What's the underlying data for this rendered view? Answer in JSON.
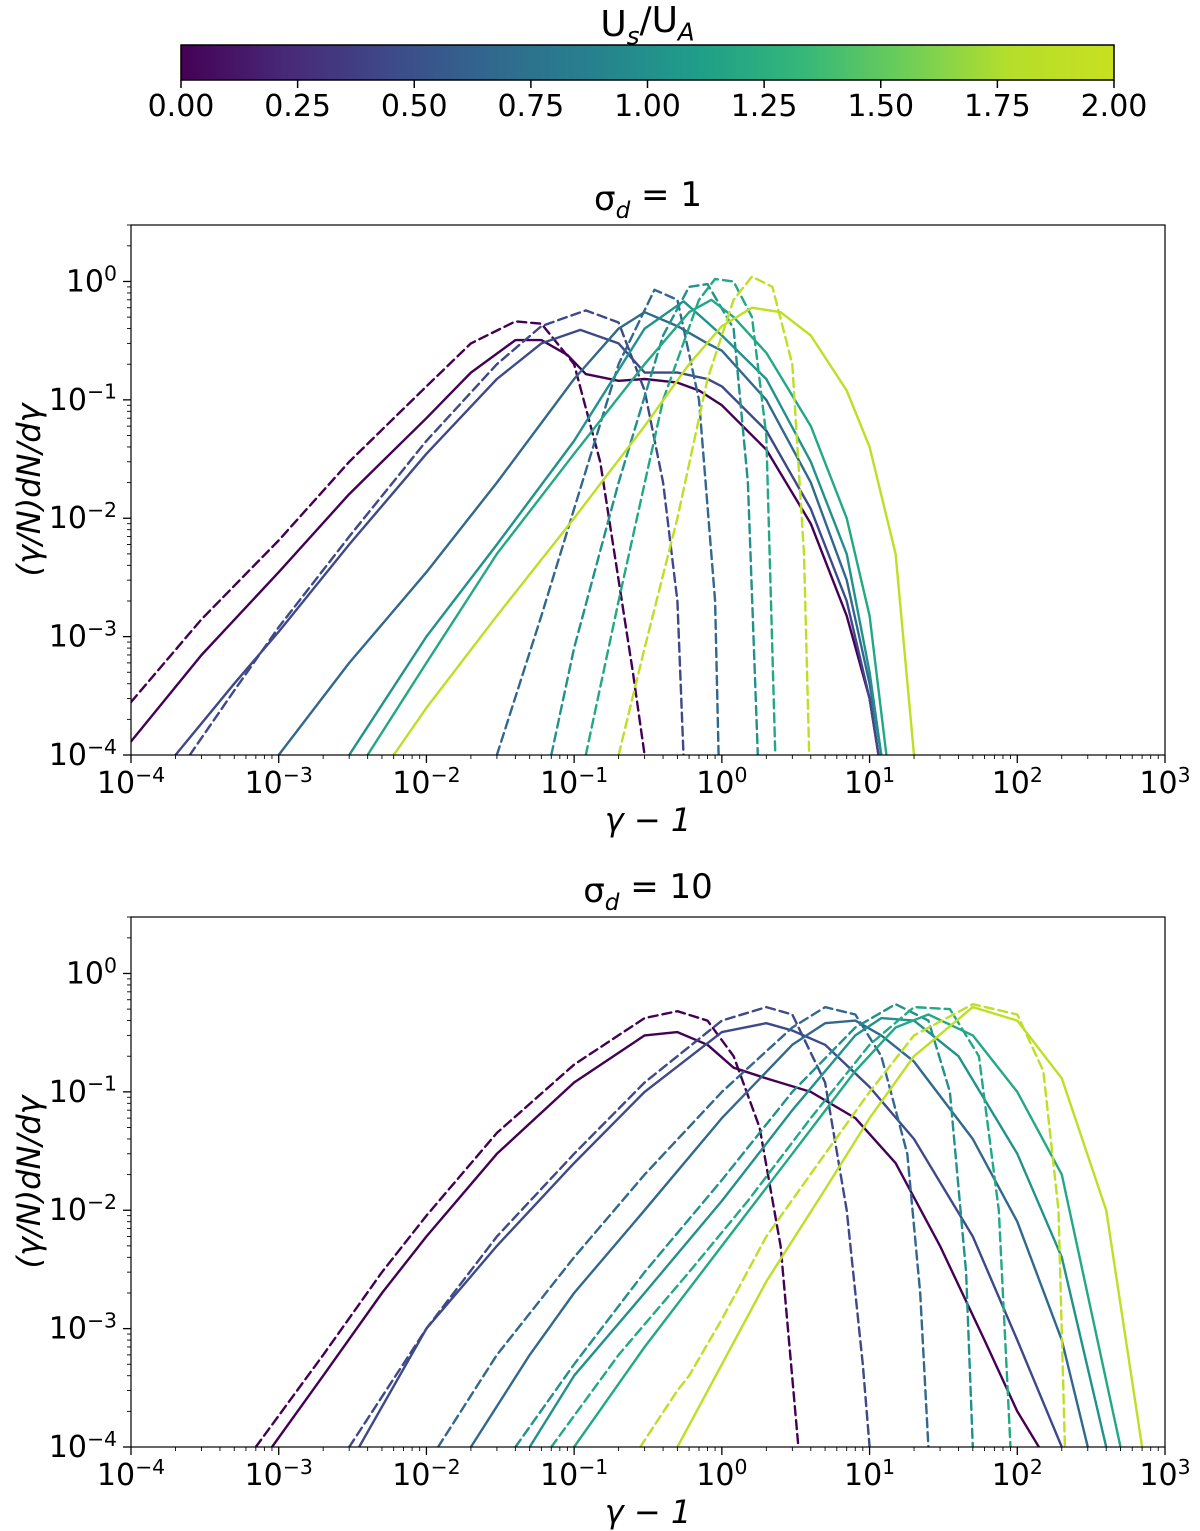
{
  "colorbar": {
    "title": "U_s/U_A",
    "min": 0,
    "max": 2,
    "ticks": [
      "0.00",
      "0.25",
      "0.50",
      "0.75",
      "1.00",
      "1.25",
      "1.50",
      "1.75",
      "2.00"
    ],
    "colormap": [
      "#440154",
      "#482878",
      "#3e4989",
      "#31688e",
      "#26828e",
      "#1f9e89",
      "#35b779",
      "#6ece58",
      "#b5de2b",
      "#c8e020"
    ]
  },
  "chart_data": [
    {
      "type": "line",
      "title": "σ_d = 1",
      "xlabel": "γ − 1",
      "ylabel": "(γ/N)dN/dγ",
      "xscale": "log",
      "yscale": "log",
      "xlim": [
        0.0001,
        1000
      ],
      "ylim": [
        0.0001,
        3
      ],
      "xticks": [
        "10^-4",
        "10^-3",
        "10^-2",
        "10^-1",
        "10^0",
        "10^1",
        "10^2",
        "10^3"
      ],
      "yticks": [
        "10^-4",
        "10^-3",
        "10^-2",
        "10^-1",
        "10^0"
      ],
      "series": [
        {
          "color": "#440154",
          "style": "solid",
          "x": [
            0.0001,
            0.0003,
            0.001,
            0.003,
            0.01,
            0.02,
            0.04,
            0.06,
            0.09,
            0.12,
            0.2,
            0.3,
            0.5,
            0.7,
            1,
            2,
            4,
            7,
            10,
            11.5
          ],
          "y": [
            0.00013,
            0.0007,
            0.0035,
            0.016,
            0.07,
            0.17,
            0.32,
            0.32,
            0.24,
            0.165,
            0.145,
            0.15,
            0.14,
            0.12,
            0.09,
            0.038,
            0.009,
            0.0015,
            0.0003,
            0.0001
          ]
        },
        {
          "color": "#440154",
          "style": "dashed",
          "x": [
            0.0001,
            0.0003,
            0.001,
            0.003,
            0.01,
            0.02,
            0.04,
            0.06,
            0.1,
            0.15,
            0.2,
            0.25,
            0.3
          ],
          "y": [
            0.00028,
            0.0014,
            0.0065,
            0.03,
            0.13,
            0.3,
            0.46,
            0.44,
            0.2,
            0.03,
            0.003,
            0.0005,
            0.0001
          ]
        },
        {
          "color": "#3e4989",
          "style": "solid",
          "x": [
            0.0002,
            0.0005,
            0.001,
            0.003,
            0.01,
            0.03,
            0.06,
            0.11,
            0.2,
            0.3,
            0.5,
            0.8,
            1,
            2,
            4,
            7,
            10,
            11.5
          ],
          "y": [
            0.0001,
            0.0004,
            0.0011,
            0.006,
            0.035,
            0.15,
            0.3,
            0.39,
            0.3,
            0.17,
            0.17,
            0.15,
            0.13,
            0.055,
            0.012,
            0.002,
            0.0003,
            0.0001
          ]
        },
        {
          "color": "#3e4989",
          "style": "dashed",
          "x": [
            0.00025,
            0.0005,
            0.001,
            0.003,
            0.01,
            0.03,
            0.06,
            0.12,
            0.2,
            0.3,
            0.4,
            0.5,
            0.55
          ],
          "y": [
            0.0001,
            0.00035,
            0.0012,
            0.007,
            0.045,
            0.2,
            0.42,
            0.57,
            0.45,
            0.12,
            0.02,
            0.002,
            0.0001
          ]
        },
        {
          "color": "#31688e",
          "style": "solid",
          "x": [
            0.001,
            0.003,
            0.01,
            0.03,
            0.1,
            0.2,
            0.3,
            0.5,
            0.8,
            1,
            2,
            4,
            7,
            10,
            12
          ],
          "y": [
            0.0001,
            0.0006,
            0.0035,
            0.02,
            0.15,
            0.4,
            0.55,
            0.42,
            0.3,
            0.26,
            0.1,
            0.02,
            0.003,
            0.0004,
            0.0001
          ]
        },
        {
          "color": "#31688e",
          "style": "dashed",
          "x": [
            0.03,
            0.06,
            0.1,
            0.2,
            0.35,
            0.5,
            0.7,
            0.9,
            0.95
          ],
          "y": [
            0.0001,
            0.0015,
            0.012,
            0.2,
            0.85,
            0.7,
            0.1,
            0.002,
            0.0001
          ]
        },
        {
          "color": "#21918c",
          "style": "solid",
          "x": [
            0.003,
            0.01,
            0.03,
            0.1,
            0.3,
            0.55,
            0.8,
            1,
            2,
            4,
            7,
            10,
            12
          ],
          "y": [
            0.0001,
            0.001,
            0.006,
            0.045,
            0.4,
            0.68,
            0.45,
            0.35,
            0.15,
            0.03,
            0.005,
            0.0005,
            0.0001
          ]
        },
        {
          "color": "#21918c",
          "style": "dashed",
          "x": [
            0.07,
            0.1,
            0.2,
            0.4,
            0.6,
            0.8,
            1.2,
            1.5,
            1.75
          ],
          "y": [
            0.0001,
            0.0008,
            0.02,
            0.35,
            0.9,
            0.95,
            0.4,
            0.02,
            0.0001
          ]
        },
        {
          "color": "#22a884",
          "style": "solid",
          "x": [
            0.004,
            0.01,
            0.03,
            0.1,
            0.3,
            0.6,
            0.85,
            1.2,
            2,
            4,
            7,
            10,
            13
          ],
          "y": [
            0.0001,
            0.0006,
            0.005,
            0.035,
            0.2,
            0.55,
            0.7,
            0.5,
            0.25,
            0.06,
            0.01,
            0.0015,
            0.0001
          ]
        },
        {
          "color": "#22a884",
          "style": "dashed",
          "x": [
            0.12,
            0.2,
            0.4,
            0.7,
            0.9,
            1.2,
            1.6,
            2,
            2.3
          ],
          "y": [
            0.0001,
            0.002,
            0.1,
            0.7,
            1.05,
            1.0,
            0.5,
            0.05,
            0.0001
          ]
        },
        {
          "color": "#bddf26",
          "style": "solid",
          "x": [
            0.006,
            0.01,
            0.03,
            0.1,
            0.3,
            0.6,
            1,
            1.6,
            2.5,
            4,
            7,
            10,
            15,
            20
          ],
          "y": [
            0.0001,
            0.00025,
            0.0015,
            0.01,
            0.06,
            0.2,
            0.42,
            0.6,
            0.55,
            0.35,
            0.12,
            0.04,
            0.005,
            0.0001
          ]
        },
        {
          "color": "#bddf26",
          "style": "dashed",
          "x": [
            0.2,
            0.3,
            0.5,
            0.8,
            1.2,
            1.6,
            2.2,
            3,
            3.6,
            3.9
          ],
          "y": [
            0.0001,
            0.0008,
            0.01,
            0.15,
            0.7,
            1.1,
            0.9,
            0.2,
            0.005,
            0.0001
          ]
        }
      ]
    },
    {
      "type": "line",
      "title": "σ_d = 10",
      "xlabel": "γ − 1",
      "ylabel": "(γ/N)dN/dγ",
      "xscale": "log",
      "yscale": "log",
      "xlim": [
        0.0001,
        1000
      ],
      "ylim": [
        0.0001,
        3
      ],
      "xticks": [
        "10^-4",
        "10^-3",
        "10^-2",
        "10^-1",
        "10^0",
        "10^1",
        "10^2",
        "10^3"
      ],
      "yticks": [
        "10^-4",
        "10^-3",
        "10^-2",
        "10^-1",
        "10^0"
      ],
      "series": [
        {
          "color": "#440154",
          "style": "solid",
          "x": [
            0.0009,
            0.002,
            0.005,
            0.01,
            0.03,
            0.1,
            0.3,
            0.5,
            0.8,
            1.2,
            2,
            4,
            8,
            15,
            30,
            60,
            100,
            140
          ],
          "y": [
            0.0001,
            0.0004,
            0.002,
            0.006,
            0.03,
            0.12,
            0.3,
            0.32,
            0.25,
            0.16,
            0.13,
            0.1,
            0.06,
            0.025,
            0.005,
            0.0008,
            0.0002,
            0.0001
          ]
        },
        {
          "color": "#440154",
          "style": "dashed",
          "x": [
            0.0007,
            0.002,
            0.005,
            0.01,
            0.03,
            0.1,
            0.3,
            0.5,
            0.8,
            1.2,
            1.8,
            2.5,
            3.3
          ],
          "y": [
            0.0001,
            0.0006,
            0.003,
            0.009,
            0.045,
            0.17,
            0.42,
            0.48,
            0.4,
            0.2,
            0.05,
            0.005,
            0.0001
          ]
        },
        {
          "color": "#3e4989",
          "style": "solid",
          "x": [
            0.0035,
            0.01,
            0.03,
            0.1,
            0.3,
            1,
            2,
            3,
            5,
            10,
            20,
            50,
            100,
            200
          ],
          "y": [
            0.0001,
            0.001,
            0.005,
            0.025,
            0.1,
            0.32,
            0.38,
            0.33,
            0.25,
            0.11,
            0.04,
            0.006,
            0.0008,
            0.0001
          ]
        },
        {
          "color": "#3e4989",
          "style": "dashed",
          "x": [
            0.003,
            0.01,
            0.03,
            0.1,
            0.3,
            1,
            2,
            3,
            5,
            7,
            9,
            10
          ],
          "y": [
            0.0001,
            0.001,
            0.006,
            0.03,
            0.12,
            0.4,
            0.52,
            0.45,
            0.12,
            0.01,
            0.0005,
            0.0001
          ]
        },
        {
          "color": "#31688e",
          "style": "solid",
          "x": [
            0.02,
            0.05,
            0.1,
            0.3,
            1,
            3,
            5,
            8,
            12,
            20,
            50,
            100,
            200,
            300
          ],
          "y": [
            0.0001,
            0.0006,
            0.002,
            0.01,
            0.06,
            0.25,
            0.38,
            0.4,
            0.3,
            0.18,
            0.04,
            0.008,
            0.0008,
            0.0001
          ]
        },
        {
          "color": "#31688e",
          "style": "dashed",
          "x": [
            0.012,
            0.03,
            0.1,
            0.3,
            1,
            3,
            5,
            8,
            12,
            18,
            22,
            25
          ],
          "y": [
            0.0001,
            0.0006,
            0.004,
            0.02,
            0.1,
            0.35,
            0.52,
            0.45,
            0.2,
            0.03,
            0.002,
            0.0001
          ]
        },
        {
          "color": "#21918c",
          "style": "solid",
          "x": [
            0.05,
            0.1,
            0.3,
            1,
            3,
            8,
            12,
            20,
            40,
            100,
            200,
            400
          ],
          "y": [
            0.0001,
            0.0004,
            0.002,
            0.012,
            0.07,
            0.3,
            0.42,
            0.4,
            0.2,
            0.03,
            0.004,
            0.0001
          ]
        },
        {
          "color": "#21918c",
          "style": "dashed",
          "x": [
            0.04,
            0.1,
            0.3,
            1,
            3,
            8,
            15,
            25,
            35,
            45,
            50
          ],
          "y": [
            0.0001,
            0.0005,
            0.003,
            0.018,
            0.1,
            0.35,
            0.55,
            0.4,
            0.1,
            0.003,
            0.0001
          ]
        },
        {
          "color": "#22a884",
          "style": "solid",
          "x": [
            0.1,
            0.3,
            1,
            3,
            8,
            15,
            25,
            50,
            100,
            200,
            500
          ],
          "y": [
            0.0001,
            0.0007,
            0.005,
            0.03,
            0.15,
            0.35,
            0.45,
            0.3,
            0.1,
            0.02,
            0.0001
          ]
        },
        {
          "color": "#22a884",
          "style": "dashed",
          "x": [
            0.07,
            0.2,
            0.6,
            1.5,
            4,
            10,
            20,
            35,
            55,
            75,
            90
          ],
          "y": [
            0.0001,
            0.0006,
            0.003,
            0.012,
            0.06,
            0.25,
            0.52,
            0.5,
            0.2,
            0.01,
            0.0001
          ]
        },
        {
          "color": "#bddf26",
          "style": "solid",
          "x": [
            0.5,
            1,
            2,
            5,
            10,
            20,
            50,
            100,
            200,
            400,
            700
          ],
          "y": [
            0.0001,
            0.0005,
            0.0025,
            0.015,
            0.06,
            0.2,
            0.52,
            0.4,
            0.13,
            0.01,
            0.0001
          ]
        },
        {
          "color": "#bddf26",
          "style": "dashed",
          "x": [
            0.28,
            0.5,
            0.6,
            1,
            2,
            5,
            10,
            20,
            50,
            100,
            150,
            190,
            210
          ],
          "y": [
            0.0001,
            0.0003,
            0.0004,
            0.0012,
            0.006,
            0.03,
            0.1,
            0.3,
            0.55,
            0.45,
            0.15,
            0.01,
            0.0001
          ]
        }
      ]
    }
  ]
}
